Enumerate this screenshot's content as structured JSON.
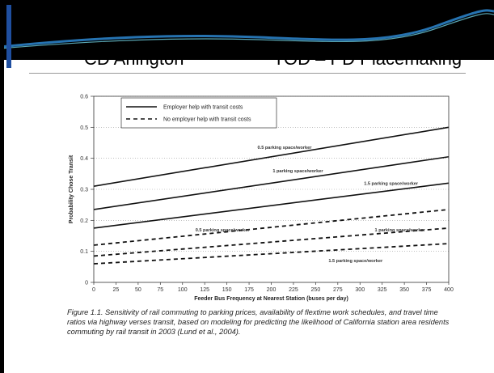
{
  "slide": {
    "title_left": "CD Arlington",
    "title_right": "TOD – PD Placemaking",
    "colors": {
      "banner": "#000000",
      "wave": "#2a7fc4",
      "accent": "#1f4fa0"
    }
  },
  "caption": "Figure 1.1. Sensitivity of rail commuting to parking prices, availability of flextime work schedules, and travel time ratios via highway verses transit, based on modeling for predicting the likelihood of California station area residents commuting by rail transit in 2003 (Lund et al., 2004).",
  "chart_data": {
    "type": "line",
    "xlabel": "Feeder Bus Frequency at Nearest Station (buses per day)",
    "ylabel": "Probability Chose Transit",
    "xlim": [
      0,
      400
    ],
    "ylim": [
      0,
      0.6
    ],
    "x_ticks": [
      "0",
      "25",
      "50",
      "75",
      "100",
      "125",
      "150",
      "175",
      "200",
      "225",
      "250",
      "275",
      "300",
      "325",
      "350",
      "375",
      "400"
    ],
    "y_ticks": [
      "0",
      "0.1",
      "0.2",
      "0.3",
      "0.4",
      "0.5",
      "0.6"
    ],
    "grid": "horizontal dotted",
    "legend": {
      "placement": "top-left",
      "entries": [
        {
          "label": "Employer help with transit costs",
          "style": "solid"
        },
        {
          "label": "No employer help with transit costs",
          "style": "dashed"
        }
      ]
    },
    "series": [
      {
        "name": "0.5 parking space/worker",
        "group": "Employer help with transit costs",
        "style": "solid",
        "x": [
          0,
          400
        ],
        "y": [
          0.31,
          0.5
        ]
      },
      {
        "name": "1 parking space/worker",
        "group": "Employer help with transit costs",
        "style": "solid",
        "x": [
          0,
          400
        ],
        "y": [
          0.235,
          0.405
        ]
      },
      {
        "name": "1.5 parking space/worker",
        "group": "Employer help with transit costs",
        "style": "solid",
        "x": [
          0,
          400
        ],
        "y": [
          0.175,
          0.32
        ]
      },
      {
        "name": "0.5 parking space/worker",
        "group": "No employer help with transit costs",
        "style": "dashed",
        "x": [
          0,
          400
        ],
        "y": [
          0.12,
          0.235
        ]
      },
      {
        "name": "1 parking space/worker",
        "group": "No employer help with transit costs",
        "style": "dashed",
        "x": [
          0,
          400
        ],
        "y": [
          0.085,
          0.175
        ]
      },
      {
        "name": "1.5 parking space/worker",
        "group": "No employer help with transit costs",
        "style": "dashed",
        "x": [
          0,
          400
        ],
        "y": [
          0.06,
          0.125
        ]
      }
    ],
    "annotations": [
      {
        "text": "0.5 parking space/worker",
        "x": 215,
        "y": 0.43
      },
      {
        "text": "1 parking space/worker",
        "x": 230,
        "y": 0.355
      },
      {
        "text": "1.5 parking space/worker",
        "x": 335,
        "y": 0.315
      },
      {
        "text": "0.5 parking space/worker",
        "x": 145,
        "y": 0.165
      },
      {
        "text": "1 parking space/worker",
        "x": 345,
        "y": 0.165
      },
      {
        "text": "1.5 parking space/worker",
        "x": 295,
        "y": 0.065
      }
    ]
  }
}
